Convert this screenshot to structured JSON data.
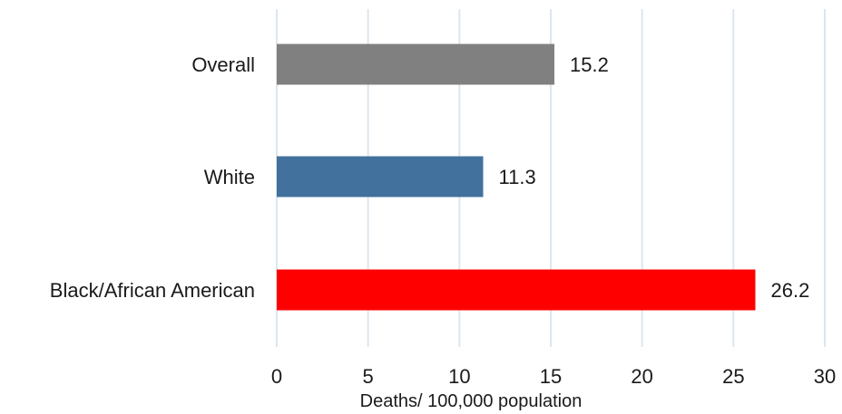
{
  "chart_data": {
    "type": "bar",
    "orientation": "horizontal",
    "categories": [
      "Overall",
      "White",
      "Black/African American"
    ],
    "values": [
      15.2,
      11.3,
      26.2
    ],
    "value_labels": [
      "15.2",
      "11.3",
      "26.2"
    ],
    "colors": [
      "#808080",
      "#41719c",
      "#ff0000"
    ],
    "xlabel": "Deaths/ 100,000 population",
    "xlim": [
      0,
      30
    ],
    "xticks": [
      0,
      5,
      10,
      15,
      20,
      25,
      30
    ],
    "xtick_labels": [
      "0",
      "5",
      "10",
      "15",
      "20",
      "25",
      "30"
    ],
    "grid": "vertical",
    "grid_color": "#dde6ee"
  }
}
